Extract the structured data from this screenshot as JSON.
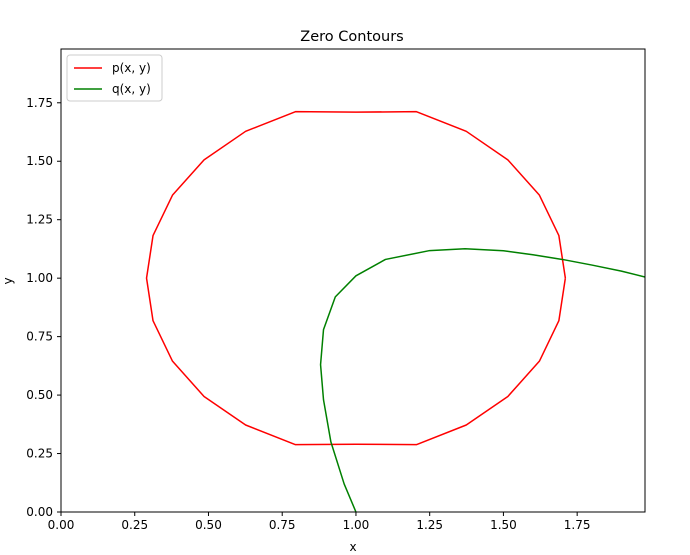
{
  "chart_data": {
    "type": "line",
    "title": "Zero Contours",
    "xlabel": "x",
    "ylabel": "y",
    "xlim": [
      0,
      1.98
    ],
    "ylim": [
      0,
      1.98
    ],
    "xticks": [
      0.0,
      0.25,
      0.5,
      0.75,
      1.0,
      1.25,
      1.5,
      1.75
    ],
    "xtick_labels": [
      "0.00",
      "0.25",
      "0.50",
      "0.75",
      "1.00",
      "1.25",
      "1.50",
      "1.75"
    ],
    "yticks": [
      0.0,
      0.25,
      0.5,
      0.75,
      1.0,
      1.25,
      1.5,
      1.75
    ],
    "ytick_labels": [
      "0.00",
      "0.25",
      "0.50",
      "0.75",
      "1.00",
      "1.25",
      "1.50",
      "1.75"
    ],
    "grid": false,
    "legend_position": "top-left",
    "series": [
      {
        "name": "p(x, y)",
        "color": "#ff0000",
        "points": [
          [
            1.71,
            1.0
          ],
          [
            1.688,
            1.182
          ],
          [
            1.622,
            1.355
          ],
          [
            1.515,
            1.506
          ],
          [
            1.374,
            1.628
          ],
          [
            1.205,
            1.712
          ],
          [
            1.0,
            1.71
          ],
          [
            0.795,
            1.712
          ],
          [
            0.626,
            1.628
          ],
          [
            0.485,
            1.506
          ],
          [
            0.378,
            1.355
          ],
          [
            0.312,
            1.182
          ],
          [
            0.29,
            1.0
          ],
          [
            0.312,
            0.818
          ],
          [
            0.378,
            0.645
          ],
          [
            0.485,
            0.494
          ],
          [
            0.626,
            0.372
          ],
          [
            0.795,
            0.288
          ],
          [
            1.0,
            0.29
          ],
          [
            1.205,
            0.288
          ],
          [
            1.374,
            0.372
          ],
          [
            1.515,
            0.494
          ],
          [
            1.622,
            0.645
          ],
          [
            1.688,
            0.818
          ],
          [
            1.71,
            1.0
          ]
        ]
      },
      {
        "name": "q(x, y)",
        "color": "#008000",
        "points": [
          [
            1.0,
            0.0
          ],
          [
            0.96,
            0.12
          ],
          [
            0.915,
            0.3
          ],
          [
            0.89,
            0.48
          ],
          [
            0.88,
            0.63
          ],
          [
            0.89,
            0.78
          ],
          [
            0.93,
            0.92
          ],
          [
            1.0,
            1.01
          ],
          [
            1.1,
            1.08
          ],
          [
            1.25,
            1.118
          ],
          [
            1.37,
            1.126
          ],
          [
            1.5,
            1.117
          ],
          [
            1.6,
            1.1
          ],
          [
            1.7,
            1.08
          ],
          [
            1.8,
            1.056
          ],
          [
            1.9,
            1.03
          ],
          [
            1.98,
            1.005
          ]
        ]
      }
    ]
  }
}
